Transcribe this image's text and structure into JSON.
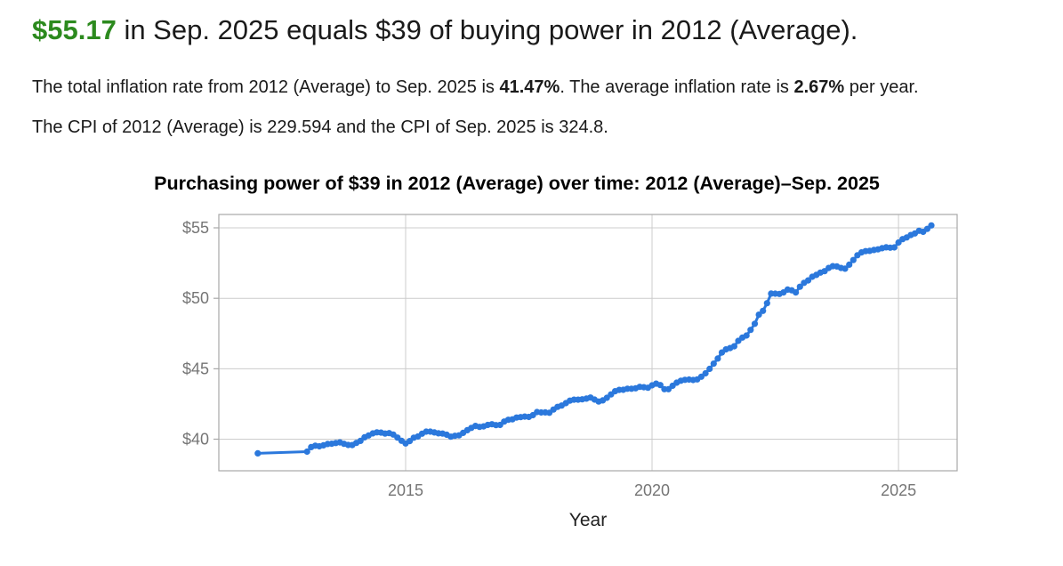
{
  "headline": {
    "amount": "$55.17",
    "rest": " in Sep. 2025 equals $39 of buying power in 2012 (Average)."
  },
  "summary": {
    "part1": "The total inflation rate from 2012 (Average) to Sep. 2025 is ",
    "total_rate": "41.47%",
    "part2": ". The average inflation rate is ",
    "avg_rate": "2.67%",
    "part3": " per year."
  },
  "cpi_text": "The CPI of 2012 (Average) is 229.594 and the CPI of Sep. 2025 is 324.8.",
  "colors": {
    "highlight_green": "#2c8a1e",
    "line_blue": "#2b78dc",
    "grid": "#cccccc",
    "plot_border": "#a8a8a8",
    "tick_text": "#757575",
    "axis_label_text": "#222222"
  },
  "chart_data": {
    "type": "line",
    "title": "Purchasing power of $39 in 2012 (Average) over time: 2012 (Average)–Sep. 2025",
    "xlabel": "Year",
    "ylabel": "",
    "legend": "none",
    "grid": true,
    "xlim": [
      2011.21,
      2026.19
    ],
    "ylim": [
      37.76,
      55.95
    ],
    "x_ticks": [
      {
        "value": 2015,
        "label": "2015"
      },
      {
        "value": 2020,
        "label": "2020"
      },
      {
        "value": 2025,
        "label": "2025"
      }
    ],
    "y_ticks": [
      {
        "value": 40,
        "label": "$40"
      },
      {
        "value": 45,
        "label": "$45"
      },
      {
        "value": 50,
        "label": "$50"
      },
      {
        "value": 55,
        "label": "$55"
      }
    ],
    "base_amount": 39,
    "base_cpi": 229.594,
    "series": [
      {
        "name": "Purchasing power of $39 from 2012 (Average)",
        "color": "#2b78dc",
        "start": {
          "x": 2012,
          "cpi": 229.594,
          "label": "2012 (Average)"
        },
        "monthly_start_year": 2013,
        "monthly_cpi": [
          [
            230.28,
            232.166,
            232.773,
            232.531,
            232.945,
            233.504,
            233.596,
            233.877,
            234.149,
            233.546,
            233.069,
            233.049
          ],
          [
            233.916,
            234.781,
            236.293,
            237.072,
            237.9,
            238.343,
            238.25,
            237.852,
            238.031,
            237.433,
            236.151,
            234.812
          ],
          [
            233.707,
            234.722,
            236.119,
            236.599,
            237.805,
            238.638,
            238.654,
            238.316,
            237.945,
            237.838,
            237.336,
            236.525
          ],
          [
            236.916,
            237.111,
            238.132,
            239.261,
            240.229,
            241.018,
            240.628,
            240.849,
            241.428,
            241.729,
            241.353,
            241.432
          ],
          [
            242.839,
            243.603,
            243.801,
            244.524,
            244.733,
            244.955,
            244.786,
            245.519,
            246.819,
            246.663,
            246.669,
            246.524
          ],
          [
            247.867,
            248.991,
            249.554,
            250.546,
            251.588,
            251.989,
            252.006,
            252.146,
            252.439,
            252.885,
            252.038,
            251.233
          ],
          [
            251.712,
            252.776,
            254.202,
            255.548,
            256.092,
            256.143,
            256.571,
            256.558,
            256.759,
            257.346,
            257.208,
            256.974
          ],
          [
            257.971,
            258.678,
            258.115,
            256.389,
            256.394,
            257.797,
            259.101,
            259.918,
            260.28,
            260.388,
            260.229,
            260.474
          ],
          [
            261.582,
            263.014,
            264.877,
            267.054,
            269.195,
            271.696,
            273.003,
            273.567,
            274.31,
            276.589,
            277.948,
            278.802
          ],
          [
            281.148,
            283.716,
            287.504,
            289.109,
            292.296,
            296.311,
            296.276,
            296.171,
            296.808,
            298.012,
            297.711,
            296.797
          ],
          [
            299.17,
            300.84,
            301.836,
            303.363,
            304.127,
            305.109,
            305.691,
            307.026,
            307.789,
            307.671,
            307.051,
            306.746
          ],
          [
            308.417,
            310.326,
            312.332,
            313.548,
            314.069,
            314.175,
            314.54,
            314.796,
            315.301,
            315.664,
            315.493,
            315.605
          ],
          [
            317.671,
            319.082,
            319.799,
            320.795,
            321.465,
            322.561,
            322.132,
            323.364,
            324.8
          ]
        ]
      }
    ]
  }
}
